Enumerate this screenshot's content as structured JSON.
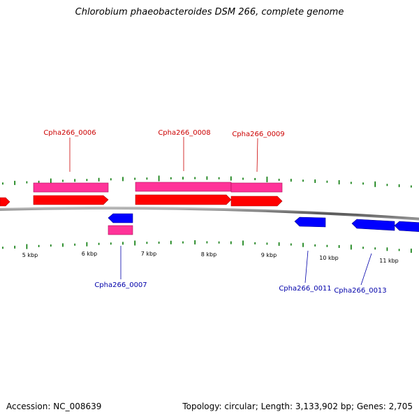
{
  "title": "Chlorobium phaeobacteroides DSM 266, complete genome",
  "accession_line": "Accession: NC_008639",
  "topology_line": "Topology: circular; Length: 3,133,902 bp; Genes: 2,705",
  "colors": {
    "forward_cds": "#ff0000",
    "forward_gene": "#ff3399",
    "reverse_cds": "#0000ff",
    "reverse_gene": "#ff3399",
    "forward_label": "#cc0000",
    "reverse_label": "#0000aa",
    "gc_ticks": "#007700",
    "backbone": "#888888"
  },
  "tick_labels": [
    "5 kbp",
    "6 kbp",
    "7 kbp",
    "8 kbp",
    "9 kbp",
    "10 kbp",
    "11 kbp"
  ],
  "gene_labels": {
    "g0006": "Cpha266_0006",
    "g0007": "Cpha266_0007",
    "g0008": "Cpha266_0008",
    "g0009": "Cpha266_0009",
    "g0011": "Cpha266_0011",
    "g0013": "Cpha266_0013"
  }
}
